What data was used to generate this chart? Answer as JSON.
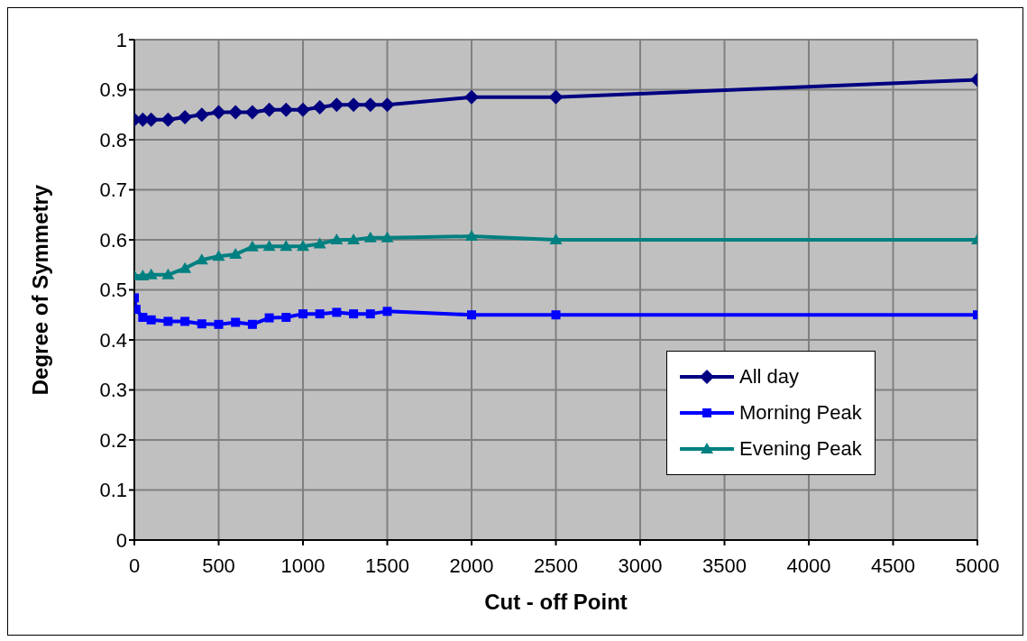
{
  "chart_data": {
    "type": "line",
    "xlabel": "Cut - off Point",
    "ylabel": "Degree of Symmetry",
    "xlim": [
      0,
      5000
    ],
    "xticks": [
      0,
      500,
      1000,
      1500,
      2000,
      2500,
      3000,
      3500,
      4000,
      4500,
      5000
    ],
    "ylim": [
      0,
      1
    ],
    "yticks": [
      0,
      0.1,
      0.2,
      0.3,
      0.4,
      0.5,
      0.6,
      0.7,
      0.8,
      0.9,
      1
    ],
    "grid": true,
    "legend": "bottom right",
    "line_style": "solid",
    "series": [
      {
        "name": "All day",
        "color": "#000080",
        "marker": "diamond",
        "x": [
          0,
          50,
          100,
          200,
          300,
          400,
          500,
          600,
          700,
          800,
          900,
          1000,
          1100,
          1200,
          1300,
          1400,
          1500,
          2000,
          2500,
          5000
        ],
        "values": [
          0.84,
          0.84,
          0.84,
          0.84,
          0.845,
          0.85,
          0.855,
          0.855,
          0.855,
          0.86,
          0.86,
          0.86,
          0.865,
          0.87,
          0.87,
          0.87,
          0.87,
          0.885,
          0.885,
          0.92
        ]
      },
      {
        "name": "Morning Peak",
        "color": "#0000ff",
        "marker": "square",
        "x": [
          0,
          10,
          50,
          100,
          200,
          300,
          400,
          500,
          600,
          700,
          800,
          900,
          1000,
          1100,
          1200,
          1300,
          1400,
          1500,
          2000,
          2500,
          5000
        ],
        "values": [
          0.484,
          0.461,
          0.445,
          0.44,
          0.437,
          0.437,
          0.432,
          0.431,
          0.435,
          0.431,
          0.444,
          0.445,
          0.452,
          0.452,
          0.455,
          0.452,
          0.452,
          0.457,
          0.45,
          0.45,
          0.45
        ]
      },
      {
        "name": "Evening Peak",
        "color": "#008080",
        "marker": "triangle",
        "x": [
          0,
          50,
          100,
          200,
          300,
          400,
          500,
          600,
          700,
          800,
          900,
          1000,
          1100,
          1200,
          1300,
          1400,
          1500,
          2000,
          2500,
          5000
        ],
        "values": [
          0.528,
          0.528,
          0.53,
          0.53,
          0.543,
          0.56,
          0.567,
          0.571,
          0.586,
          0.587,
          0.587,
          0.587,
          0.592,
          0.6,
          0.6,
          0.604,
          0.604,
          0.607,
          0.6,
          0.6
        ]
      }
    ]
  }
}
